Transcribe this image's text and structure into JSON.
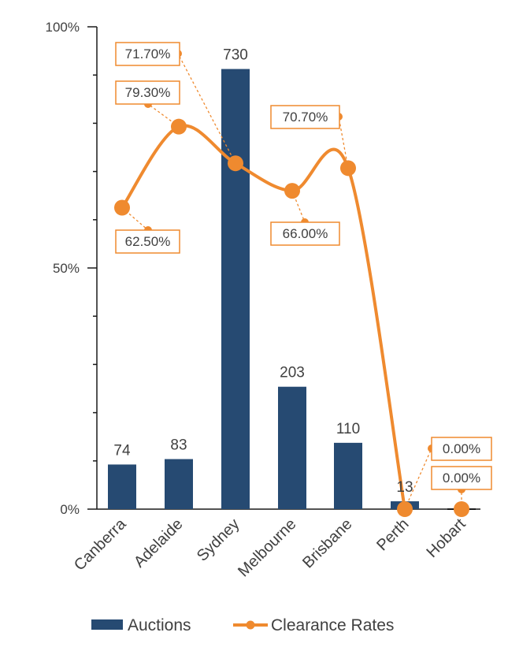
{
  "chart_data": {
    "type": "bar+line",
    "categories": [
      "Canberra",
      "Adelaide",
      "Sydney",
      "Melbourne",
      "Brisbane",
      "Perth",
      "Hobart"
    ],
    "series": [
      {
        "name": "Auctions",
        "type": "bar",
        "axis": "secondary",
        "values": [
          74,
          83,
          730,
          203,
          110,
          13,
          0
        ],
        "labels": [
          "74",
          "83",
          "730",
          "203",
          "110",
          "13",
          ""
        ]
      },
      {
        "name": "Clearance Rates",
        "type": "line",
        "axis": "primary",
        "values": [
          62.5,
          79.3,
          71.7,
          66.0,
          70.7,
          0.0,
          0.0
        ],
        "labels": [
          "62.50%",
          "79.30%",
          "71.70%",
          "66.00%",
          "70.70%",
          "0.00%",
          "0.00%"
        ]
      }
    ],
    "y_ticks": [
      "100%",
      "50%",
      "0%"
    ],
    "ylim": [
      0,
      100
    ],
    "y2lim": [
      0,
      800
    ],
    "legend": [
      "Auctions",
      "Clearance Rates"
    ],
    "legend_position": "bottom",
    "colors": {
      "bar": "#264A72",
      "line": "#EF8A2F",
      "label_border": "#EF8A2F",
      "axis": "#1a1a1a",
      "text": "#404040"
    }
  }
}
